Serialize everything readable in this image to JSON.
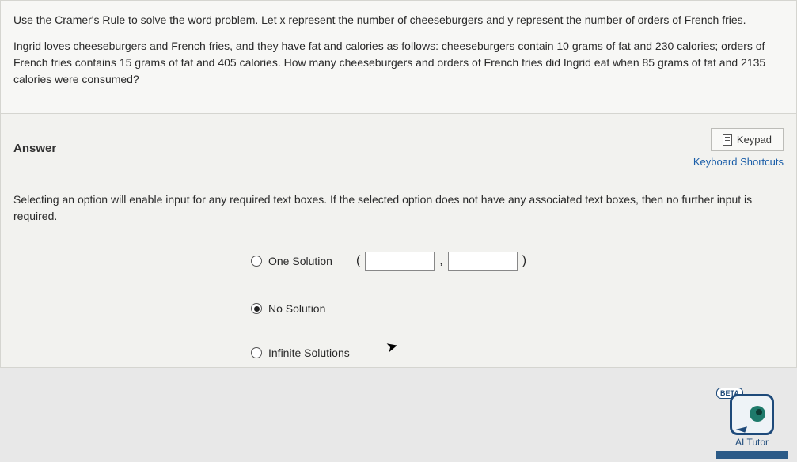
{
  "question": {
    "intro": "Use the Cramer's Rule to solve the word problem. Let x represent the number of cheeseburgers and y represent the number of orders of French fries.",
    "body": "Ingrid loves cheeseburgers and French fries, and they have fat and calories as follows:  cheeseburgers contain 10 grams of fat and 230 calories; orders of French fries contains 15 grams of fat and 405 calories.  How many cheeseburgers and orders of French fries did Ingrid eat when 85 grams of fat and 2135 calories were consumed?"
  },
  "answer": {
    "title": "Answer",
    "keypad_label": "Keypad",
    "shortcuts_label": "Keyboard Shortcuts",
    "instruction": "Selecting an option will enable input for any required text boxes. If the selected option does not have any associated text boxes, then no further input is required.",
    "options": {
      "one_solution": {
        "label": "One Solution",
        "selected": false,
        "x_value": "",
        "y_value": ""
      },
      "no_solution": {
        "label": "No Solution",
        "selected": true
      },
      "infinite_solutions": {
        "label": "Infinite Solutions",
        "selected": false
      }
    },
    "paren_left": "(",
    "paren_sep": ",",
    "paren_right": ")"
  },
  "tutor": {
    "beta_label": "BETA",
    "label": "AI Tutor"
  }
}
